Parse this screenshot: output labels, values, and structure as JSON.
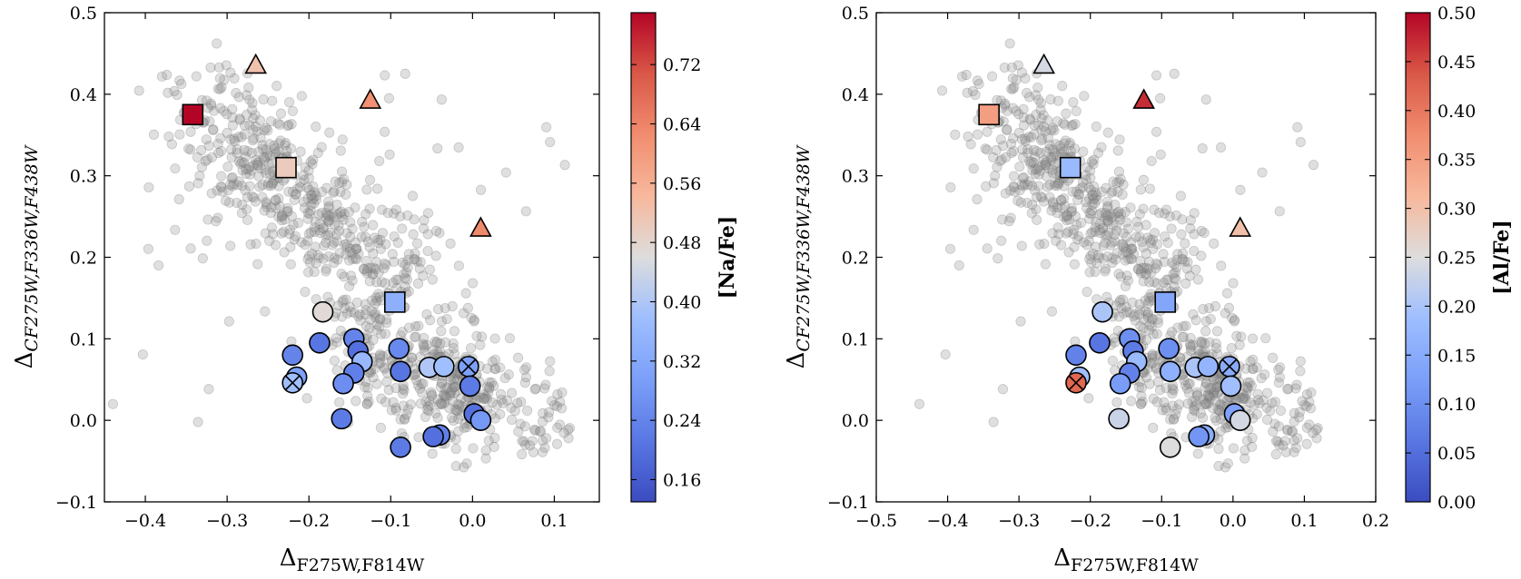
{
  "chart_data": [
    {
      "type": "scatter",
      "panel": "left",
      "xlabel_main": "Δ",
      "xlabel_sub": "F275W,F814W",
      "ylabel_main": "Δ",
      "ylabel_sub": "CF275W,F336W,F438W",
      "xlim": [
        -0.45,
        0.155
      ],
      "ylim": [
        -0.1,
        0.5
      ],
      "xticks": [
        -0.4,
        -0.3,
        -0.2,
        -0.1,
        0.0,
        0.1
      ],
      "xtick_labels": [
        "−0.4",
        "−0.3",
        "−0.2",
        "−0.1",
        "0.0",
        "0.1"
      ],
      "yticks": [
        -0.1,
        0.0,
        0.1,
        0.2,
        0.3,
        0.4,
        0.5
      ],
      "ytick_labels": [
        "−0.1",
        "0.0",
        "0.1",
        "0.2",
        "0.3",
        "0.4",
        "0.5"
      ],
      "colorbar": {
        "label": "[Na/Fe]",
        "cmap": "coolwarm",
        "vmin": 0.13,
        "vmax": 0.79,
        "ticks": [
          0.16,
          0.24,
          0.32,
          0.4,
          0.48,
          0.56,
          0.64,
          0.72
        ],
        "tick_labels": [
          "0.16",
          "0.24",
          "0.32",
          "0.40",
          "0.48",
          "0.56",
          "0.64",
          "0.72"
        ]
      },
      "background_series": "photometric stars (grey)",
      "highlighted": [
        {
          "marker": "triangle",
          "x": -0.265,
          "y": 0.435,
          "c": 0.52
        },
        {
          "marker": "triangle",
          "x": -0.125,
          "y": 0.392,
          "c": 0.62
        },
        {
          "marker": "triangle",
          "x": 0.01,
          "y": 0.235,
          "c": 0.63
        },
        {
          "marker": "square",
          "x": -0.342,
          "y": 0.375,
          "c": 0.79
        },
        {
          "marker": "square",
          "x": -0.228,
          "y": 0.31,
          "c": 0.5
        },
        {
          "marker": "square",
          "x": -0.095,
          "y": 0.145,
          "c": 0.34
        },
        {
          "marker": "circle",
          "x": -0.183,
          "y": 0.133,
          "c": 0.47
        },
        {
          "marker": "circle",
          "x": -0.22,
          "y": 0.08,
          "c": 0.24
        },
        {
          "marker": "circle",
          "x": -0.187,
          "y": 0.095,
          "c": 0.21
        },
        {
          "marker": "circle",
          "x": -0.215,
          "y": 0.053,
          "c": 0.3
        },
        {
          "marker": "circle",
          "x": -0.22,
          "y": 0.046,
          "c": 0.38,
          "cross": true
        },
        {
          "marker": "circle",
          "x": -0.145,
          "y": 0.1,
          "c": 0.24
        },
        {
          "marker": "circle",
          "x": -0.14,
          "y": 0.085,
          "c": 0.2
        },
        {
          "marker": "circle",
          "x": -0.135,
          "y": 0.072,
          "c": 0.36
        },
        {
          "marker": "circle",
          "x": -0.145,
          "y": 0.058,
          "c": 0.23
        },
        {
          "marker": "circle",
          "x": -0.158,
          "y": 0.045,
          "c": 0.26
        },
        {
          "marker": "circle",
          "x": -0.16,
          "y": 0.002,
          "c": 0.22
        },
        {
          "marker": "circle",
          "x": -0.09,
          "y": 0.088,
          "c": 0.25
        },
        {
          "marker": "circle",
          "x": -0.088,
          "y": 0.06,
          "c": 0.21
        },
        {
          "marker": "circle",
          "x": -0.088,
          "y": -0.033,
          "c": 0.22
        },
        {
          "marker": "circle",
          "x": -0.053,
          "y": 0.065,
          "c": 0.4
        },
        {
          "marker": "circle",
          "x": -0.035,
          "y": 0.066,
          "c": 0.38
        },
        {
          "marker": "circle",
          "x": -0.04,
          "y": -0.018,
          "c": 0.23
        },
        {
          "marker": "circle",
          "x": -0.048,
          "y": -0.02,
          "c": 0.2
        },
        {
          "marker": "circle",
          "x": -0.005,
          "y": 0.066,
          "c": 0.3,
          "cross": true
        },
        {
          "marker": "circle",
          "x": -0.003,
          "y": 0.042,
          "c": 0.22
        },
        {
          "marker": "circle",
          "x": 0.002,
          "y": 0.008,
          "c": 0.2
        },
        {
          "marker": "circle",
          "x": 0.01,
          "y": 0.0,
          "c": 0.28
        }
      ]
    },
    {
      "type": "scatter",
      "panel": "right",
      "xlabel_main": "Δ",
      "xlabel_sub": "F275W,F814W",
      "ylabel_main": "Δ",
      "ylabel_sub": "CF275W,F336W,F438W",
      "xlim": [
        -0.5,
        0.2
      ],
      "ylim": [
        -0.1,
        0.5
      ],
      "xticks": [
        -0.5,
        -0.4,
        -0.3,
        -0.2,
        -0.1,
        0.0,
        0.1,
        0.2
      ],
      "xtick_labels": [
        "−0.5",
        "−0.4",
        "−0.3",
        "−0.2",
        "−0.1",
        "0.0",
        "0.1",
        "0.2"
      ],
      "yticks": [
        -0.1,
        0.0,
        0.1,
        0.2,
        0.3,
        0.4,
        0.5
      ],
      "ytick_labels": [
        "−0.1",
        "0.0",
        "0.1",
        "0.2",
        "0.3",
        "0.4",
        "0.5"
      ],
      "colorbar": {
        "label": "[Al/Fe]",
        "cmap": "coolwarm",
        "vmin": 0.0,
        "vmax": 0.5,
        "ticks": [
          0.0,
          0.05,
          0.1,
          0.15,
          0.2,
          0.25,
          0.3,
          0.35,
          0.4,
          0.45,
          0.5
        ],
        "tick_labels": [
          "0.00",
          "0.05",
          "0.10",
          "0.15",
          "0.20",
          "0.25",
          "0.30",
          "0.35",
          "0.40",
          "0.45",
          "0.50"
        ]
      },
      "background_series": "photometric stars (grey)",
      "highlighted": [
        {
          "marker": "triangle",
          "x": -0.265,
          "y": 0.435,
          "c": 0.24
        },
        {
          "marker": "triangle",
          "x": -0.125,
          "y": 0.392,
          "c": 0.47
        },
        {
          "marker": "triangle",
          "x": 0.01,
          "y": 0.235,
          "c": 0.3
        },
        {
          "marker": "square",
          "x": -0.342,
          "y": 0.375,
          "c": 0.35
        },
        {
          "marker": "square",
          "x": -0.228,
          "y": 0.31,
          "c": 0.18
        },
        {
          "marker": "square",
          "x": -0.095,
          "y": 0.145,
          "c": 0.14
        },
        {
          "marker": "circle",
          "x": -0.183,
          "y": 0.133,
          "c": 0.2
        },
        {
          "marker": "circle",
          "x": -0.22,
          "y": 0.08,
          "c": 0.08
        },
        {
          "marker": "circle",
          "x": -0.187,
          "y": 0.095,
          "c": 0.06
        },
        {
          "marker": "circle",
          "x": -0.215,
          "y": 0.053,
          "c": 0.19
        },
        {
          "marker": "circle",
          "x": -0.22,
          "y": 0.046,
          "c": 0.42,
          "cross": true
        },
        {
          "marker": "circle",
          "x": -0.145,
          "y": 0.1,
          "c": 0.1
        },
        {
          "marker": "circle",
          "x": -0.14,
          "y": 0.085,
          "c": 0.07
        },
        {
          "marker": "circle",
          "x": -0.135,
          "y": 0.072,
          "c": 0.18
        },
        {
          "marker": "circle",
          "x": -0.145,
          "y": 0.058,
          "c": 0.08
        },
        {
          "marker": "circle",
          "x": -0.158,
          "y": 0.045,
          "c": 0.12
        },
        {
          "marker": "circle",
          "x": -0.16,
          "y": 0.002,
          "c": 0.23
        },
        {
          "marker": "circle",
          "x": -0.09,
          "y": 0.088,
          "c": 0.1
        },
        {
          "marker": "circle",
          "x": -0.088,
          "y": 0.06,
          "c": 0.16
        },
        {
          "marker": "circle",
          "x": -0.088,
          "y": -0.033,
          "c": 0.25
        },
        {
          "marker": "circle",
          "x": -0.053,
          "y": 0.065,
          "c": 0.2
        },
        {
          "marker": "circle",
          "x": -0.035,
          "y": 0.066,
          "c": 0.17
        },
        {
          "marker": "circle",
          "x": -0.04,
          "y": -0.018,
          "c": 0.15
        },
        {
          "marker": "circle",
          "x": -0.048,
          "y": -0.02,
          "c": 0.11
        },
        {
          "marker": "circle",
          "x": -0.005,
          "y": 0.066,
          "c": 0.15,
          "cross": true
        },
        {
          "marker": "circle",
          "x": -0.003,
          "y": 0.042,
          "c": 0.19
        },
        {
          "marker": "circle",
          "x": 0.002,
          "y": 0.008,
          "c": 0.13
        },
        {
          "marker": "circle",
          "x": 0.01,
          "y": 0.0,
          "c": 0.24
        }
      ]
    }
  ],
  "colors": {
    "background_point": "#8c8c8c",
    "cmap_low": "#3b4cc0",
    "cmap_mid": "#dddddd",
    "cmap_high": "#b40426"
  }
}
